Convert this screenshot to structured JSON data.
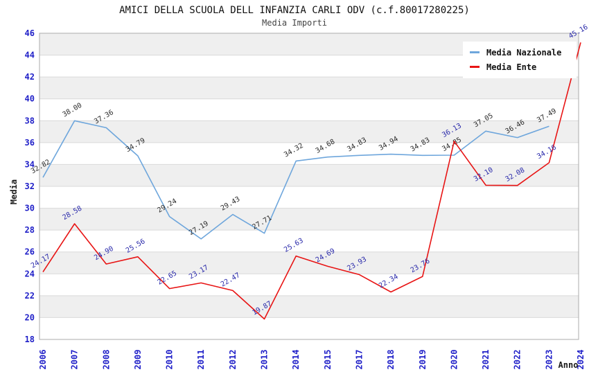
{
  "header": {
    "title": "AMICI DELLA SCUOLA DELL INFANZIA CARLI ODV (c.f.80017280225)",
    "subtitle": "Media Importi"
  },
  "chart_data": {
    "type": "line",
    "title": "AMICI DELLA SCUOLA DELL INFANZIA CARLI ODV (c.f.80017280225)",
    "subtitle": "Media Importi",
    "xlabel": "Anno",
    "ylabel": "Media",
    "ylim": [
      18,
      46
    ],
    "ytick_step": 2,
    "grid": "horizontal gridlines with alternating gray/white bands every 2 units",
    "legend_position": "top-right",
    "markers": false,
    "categories": [
      "2006",
      "2007",
      "2008",
      "2009",
      "2010",
      "2011",
      "2012",
      "2013",
      "2014",
      "2015",
      "2017",
      "2018",
      "2019",
      "2020",
      "2021",
      "2022",
      "2023",
      "2024"
    ],
    "series": [
      {
        "name": "Media Nazionale",
        "color": "#6ea6dc",
        "label_color": "#2b2b2b",
        "values": [
          32.82,
          38.0,
          37.36,
          34.79,
          29.24,
          27.19,
          29.43,
          27.71,
          34.32,
          34.68,
          34.83,
          34.94,
          34.83,
          34.85,
          37.05,
          36.46,
          37.49,
          null
        ]
      },
      {
        "name": "Media Ente",
        "color": "#e81414",
        "label_color": "#2828aa",
        "values": [
          24.17,
          28.58,
          24.9,
          25.56,
          22.65,
          23.17,
          22.47,
          19.87,
          25.63,
          24.69,
          23.93,
          22.34,
          23.76,
          36.13,
          32.1,
          32.08,
          34.16,
          45.16
        ]
      }
    ],
    "colors": {
      "band": "#efefef",
      "gridline": "#d9d9d9",
      "border": "#ababab",
      "tick": "#1f1fc8",
      "title": "#111111",
      "subtitle": "#444444"
    }
  }
}
